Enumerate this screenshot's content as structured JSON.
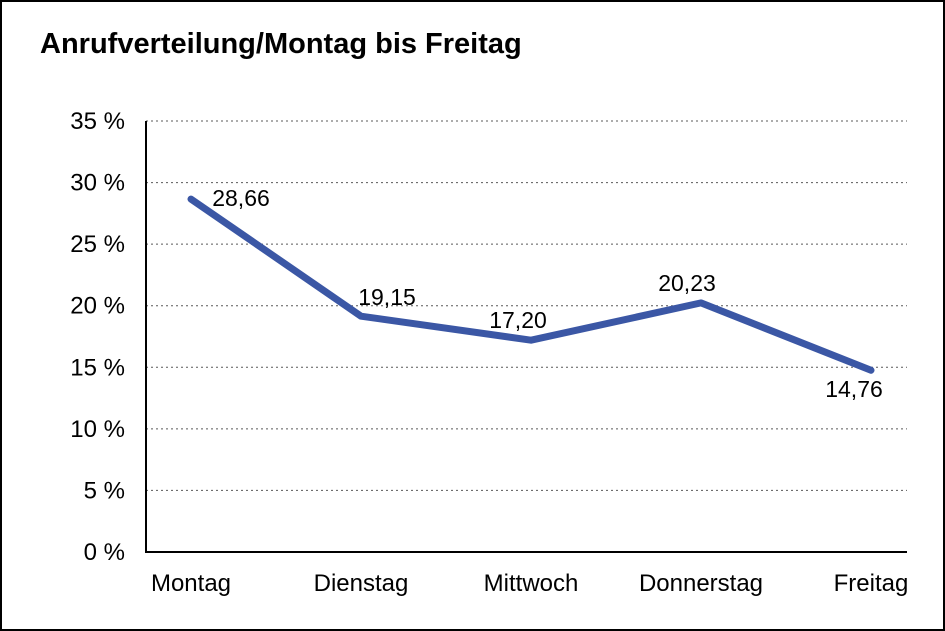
{
  "chart": {
    "title": "Anrufverteilung/Montag bis Freitag"
  },
  "chart_data": {
    "type": "line",
    "title": "Anrufverteilung/Montag bis Freitag",
    "categories": [
      "Montag",
      "Dienstag",
      "Mittwoch",
      "Donnerstag",
      "Freitag"
    ],
    "values": [
      28.66,
      19.15,
      17.2,
      20.23,
      14.76
    ],
    "value_labels": [
      "28,66",
      "19,15",
      "17,20",
      "20,23",
      "14,76"
    ],
    "y_ticks": [
      0,
      5,
      10,
      15,
      20,
      25,
      30,
      35
    ],
    "y_tick_labels": [
      "0 %",
      "5 %",
      "10 %",
      "15 %",
      "20 %",
      "25 %",
      "30 %",
      "35 %"
    ],
    "ylim": [
      0,
      35
    ],
    "xlabel": "",
    "ylabel": "",
    "legend": "none",
    "grid": "horizontal-dotted",
    "line_color": "#3B57A5",
    "text_color": "#000000",
    "background": "#FFFFFF",
    "border_color": "#000000"
  }
}
